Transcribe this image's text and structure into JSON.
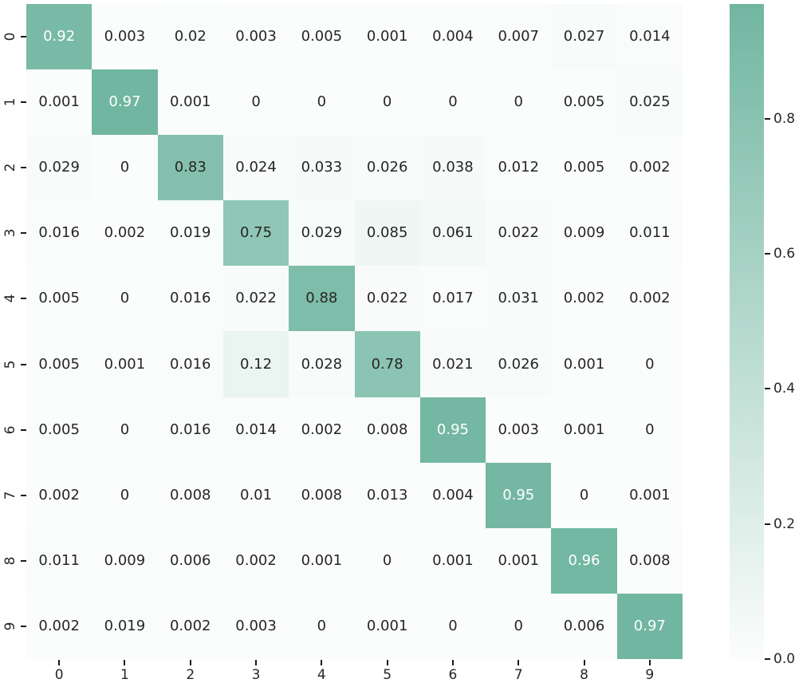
{
  "figure": {
    "background": "#ffffff",
    "tick_color": "#1a1a1a",
    "label_color": "#262626"
  },
  "chart_data": {
    "type": "heatmap",
    "title": "",
    "xlabel": "",
    "ylabel": "",
    "x_tick_labels": [
      "0",
      "1",
      "2",
      "3",
      "4",
      "5",
      "6",
      "7",
      "8",
      "9"
    ],
    "y_tick_labels": [
      "0",
      "1",
      "2",
      "3",
      "4",
      "5",
      "6",
      "7",
      "8",
      "9"
    ],
    "matrix": [
      [
        0.92,
        0.003,
        0.02,
        0.003,
        0.005,
        0.001,
        0.004,
        0.007,
        0.027,
        0.014
      ],
      [
        0.001,
        0.97,
        0.001,
        0,
        0,
        0,
        0,
        0,
        0.005,
        0.025
      ],
      [
        0.029,
        0,
        0.83,
        0.024,
        0.033,
        0.026,
        0.038,
        0.012,
        0.005,
        0.002
      ],
      [
        0.016,
        0.002,
        0.019,
        0.75,
        0.029,
        0.085,
        0.061,
        0.022,
        0.009,
        0.011
      ],
      [
        0.005,
        0,
        0.016,
        0.022,
        0.88,
        0.022,
        0.017,
        0.031,
        0.002,
        0.002
      ],
      [
        0.005,
        0.001,
        0.016,
        0.12,
        0.028,
        0.78,
        0.021,
        0.026,
        0.001,
        0
      ],
      [
        0.005,
        0,
        0.016,
        0.014,
        0.002,
        0.008,
        0.95,
        0.003,
        0.001,
        0
      ],
      [
        0.002,
        0,
        0.008,
        0.01,
        0.008,
        0.013,
        0.004,
        0.95,
        0,
        0.001
      ],
      [
        0.011,
        0.009,
        0.006,
        0.002,
        0.001,
        0,
        0.001,
        0.001,
        0.96,
        0.008
      ],
      [
        0.002,
        0.019,
        0.002,
        0.003,
        0,
        0.001,
        0,
        0,
        0.006,
        0.97
      ]
    ],
    "cell_labels": [
      [
        "0.92",
        "0.003",
        "0.02",
        "0.003",
        "0.005",
        "0.001",
        "0.004",
        "0.007",
        "0.027",
        "0.014"
      ],
      [
        "0.001",
        "0.97",
        "0.001",
        "0",
        "0",
        "0",
        "0",
        "0",
        "0.005",
        "0.025"
      ],
      [
        "0.029",
        "0",
        "0.83",
        "0.024",
        "0.033",
        "0.026",
        "0.038",
        "0.012",
        "0.005",
        "0.002"
      ],
      [
        "0.016",
        "0.002",
        "0.019",
        "0.75",
        "0.029",
        "0.085",
        "0.061",
        "0.022",
        "0.009",
        "0.011"
      ],
      [
        "0.005",
        "0",
        "0.016",
        "0.022",
        "0.88",
        "0.022",
        "0.017",
        "0.031",
        "0.002",
        "0.002"
      ],
      [
        "0.005",
        "0.001",
        "0.016",
        "0.12",
        "0.028",
        "0.78",
        "0.021",
        "0.026",
        "0.001",
        "0"
      ],
      [
        "0.005",
        "0",
        "0.016",
        "0.014",
        "0.002",
        "0.008",
        "0.95",
        "0.003",
        "0.001",
        "0"
      ],
      [
        "0.002",
        "0",
        "0.008",
        "0.01",
        "0.008",
        "0.013",
        "0.004",
        "0.95",
        "0",
        "0.001"
      ],
      [
        "0.011",
        "0.009",
        "0.006",
        "0.002",
        "0.001",
        "0",
        "0.001",
        "0.001",
        "0.96",
        "0.008"
      ],
      [
        "0.002",
        "0.019",
        "0.002",
        "0.003",
        "0",
        "0.001",
        "0",
        "0",
        "0.006",
        "0.97"
      ]
    ],
    "vmin": 0,
    "vmax": 0.97,
    "colormap": {
      "low": "#fbfdfc",
      "high": "#71b6a1",
      "annot_dark": "#262626",
      "annot_light": "#ffffff",
      "white_text_threshold": 0.9
    },
    "legend_position": "right-colorbar",
    "grid": false,
    "colorbar_ticks": [
      {
        "label": "0.8",
        "value": 0.8
      },
      {
        "label": "0.6",
        "value": 0.6
      },
      {
        "label": "0.4",
        "value": 0.4
      },
      {
        "label": "0.2",
        "value": 0.2
      },
      {
        "label": "0.0",
        "value": 0.0
      }
    ]
  }
}
